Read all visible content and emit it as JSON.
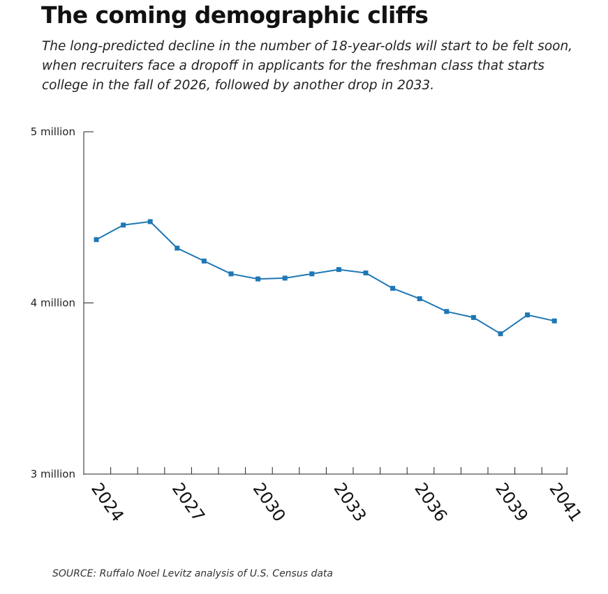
{
  "header": {
    "title": "The coming demographic cliffs",
    "subtitle": "The long-predicted decline in the number of 18-year-olds will start to be felt soon, when recruiters face a dropoff in applicants for the freshman class that starts college in the fall of 2026, followed by another drop in 2033."
  },
  "footer": {
    "source": "SOURCE: Ruffalo Noel Levitz analysis of U.S. Census data"
  },
  "colors": {
    "series": "#1f77b4",
    "axis": "#222222"
  },
  "chart_data": {
    "type": "line",
    "title": "The coming demographic cliffs",
    "xlabel": "",
    "ylabel": "",
    "x": [
      2024,
      2025,
      2026,
      2027,
      2028,
      2029,
      2030,
      2031,
      2032,
      2033,
      2034,
      2035,
      2036,
      2037,
      2038,
      2039,
      2040,
      2041
    ],
    "series": [
      {
        "name": "18-year-olds",
        "values": [
          4.37,
          4.455,
          4.475,
          4.32,
          4.245,
          4.17,
          4.14,
          4.145,
          4.17,
          4.195,
          4.175,
          4.085,
          4.025,
          3.95,
          3.915,
          3.82,
          3.93,
          3.895
        ]
      }
    ],
    "ylim": [
      3,
      5
    ],
    "y_ticks": [
      {
        "value": 3,
        "label": "3 million"
      },
      {
        "value": 4,
        "label": "4 million"
      },
      {
        "value": 5,
        "label": "5 million"
      }
    ],
    "x_tick_labels": [
      {
        "value": 2024,
        "label": "2024"
      },
      {
        "value": 2027,
        "label": "2027"
      },
      {
        "value": 2030,
        "label": "2030"
      },
      {
        "value": 2033,
        "label": "2033"
      },
      {
        "value": 2036,
        "label": "2036"
      },
      {
        "value": 2039,
        "label": "2039"
      },
      {
        "value": 2041,
        "label": "2041"
      }
    ],
    "grid": false,
    "legend": "none"
  }
}
